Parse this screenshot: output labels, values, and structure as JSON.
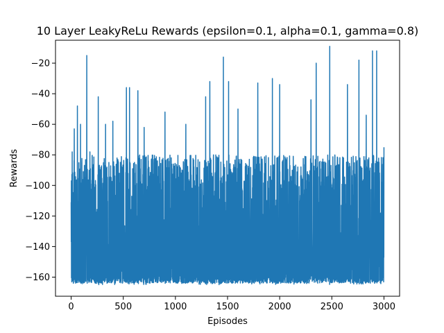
{
  "chart_data": {
    "type": "line",
    "title": "10 Layer LeakyReLu Rewards (epsilon=0.1, alpha=0.1, gamma=0.8)",
    "xlabel": "Episodes",
    "ylabel": "Rewards",
    "xlim": [
      -150,
      3150
    ],
    "ylim": [
      -172.5,
      -5
    ],
    "xticks": [
      0,
      500,
      1000,
      1500,
      2000,
      2500,
      3000
    ],
    "yticks": [
      -160,
      -140,
      -120,
      -100,
      -80,
      -60,
      -40,
      -20
    ],
    "grid": false,
    "legend": "none",
    "n_points": 3000,
    "value_range": [
      -165,
      -9
    ],
    "typical_band": [
      -162,
      -80
    ],
    "series": [
      {
        "color": "#1f77b4",
        "notable_peaks": [
          {
            "x": 0,
            "y": -111
          },
          {
            "x": 10,
            "y": -78
          },
          {
            "x": 30,
            "y": -63
          },
          {
            "x": 60,
            "y": -48
          },
          {
            "x": 90,
            "y": -60
          },
          {
            "x": 150,
            "y": -15
          },
          {
            "x": 180,
            "y": -78
          },
          {
            "x": 260,
            "y": -42
          },
          {
            "x": 330,
            "y": -60
          },
          {
            "x": 400,
            "y": -58
          },
          {
            "x": 530,
            "y": -36
          },
          {
            "x": 560,
            "y": -36
          },
          {
            "x": 640,
            "y": -38
          },
          {
            "x": 700,
            "y": -62
          },
          {
            "x": 900,
            "y": -52
          },
          {
            "x": 1100,
            "y": -60
          },
          {
            "x": 1290,
            "y": -42
          },
          {
            "x": 1330,
            "y": -32
          },
          {
            "x": 1460,
            "y": -16
          },
          {
            "x": 1510,
            "y": -32
          },
          {
            "x": 1600,
            "y": -50
          },
          {
            "x": 1790,
            "y": -33
          },
          {
            "x": 1930,
            "y": -30
          },
          {
            "x": 2000,
            "y": -34
          },
          {
            "x": 2300,
            "y": -44
          },
          {
            "x": 2350,
            "y": -20
          },
          {
            "x": 2480,
            "y": -9
          },
          {
            "x": 2650,
            "y": -34
          },
          {
            "x": 2760,
            "y": -18
          },
          {
            "x": 2830,
            "y": -54
          },
          {
            "x": 2890,
            "y": -12
          },
          {
            "x": 2930,
            "y": -12
          },
          {
            "x": 3000,
            "y": -75
          }
        ]
      }
    ]
  }
}
